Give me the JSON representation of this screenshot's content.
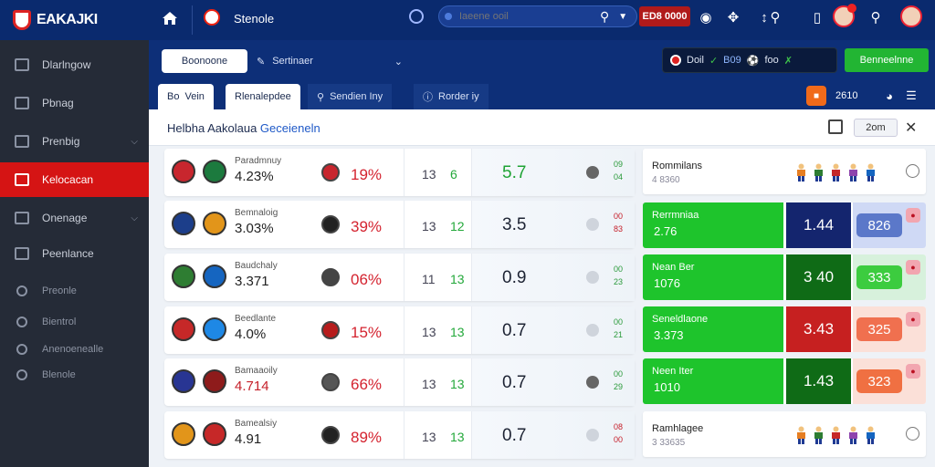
{
  "topbar": {
    "logo_text": "EAKAJKI",
    "title": "Stenole",
    "search_placeholder": "Iaeene ooil",
    "live_label": "ED8 0000"
  },
  "sidebar": {
    "items": [
      {
        "label": "Dlarlngow",
        "icon": "shield-icon",
        "chevron": false,
        "active": false
      },
      {
        "label": "Pbnag",
        "icon": "phone-icon",
        "chevron": false,
        "active": false
      },
      {
        "label": "Prenbig",
        "icon": "card-icon",
        "chevron": true,
        "active": false
      },
      {
        "label": "Kelocacan",
        "icon": "home-icon",
        "active": true,
        "chevron": false
      },
      {
        "label": "Onenage",
        "icon": "wallet-icon",
        "chevron": true,
        "active": false
      },
      {
        "label": "Peenlance",
        "icon": "chart-icon",
        "chevron": false,
        "active": false
      }
    ],
    "small_items": [
      {
        "label": "Preonle",
        "icon": "users-icon"
      },
      {
        "label": "Bientrol",
        "icon": "settings-icon"
      },
      {
        "label": "Anenoenealle",
        "icon": "globe-icon"
      },
      {
        "label": "Blenole",
        "icon": "info-icon"
      }
    ]
  },
  "subbar": {
    "select1": "Boonoone",
    "select2": "Sertinaer",
    "score_widget": {
      "a": "Doil",
      "b": "B09",
      "c": "foo"
    },
    "green_button": "Benneelnne"
  },
  "tabs": [
    {
      "label": "Vein",
      "prefix": "Bo"
    },
    {
      "label": "Rlenalepdee"
    },
    {
      "label": "Sendien Iny"
    },
    {
      "label": "Rorder iy"
    }
  ],
  "tabbar_right": {
    "count": "2610"
  },
  "main": {
    "title_plain": "Helbha Aakolaua ",
    "title_accent": "Geceieneln",
    "zoom_label": "2om"
  },
  "matches": [
    {
      "label": "Paradmnuy",
      "pct": "4.23%",
      "away_pct": "19%",
      "n1": "13",
      "n2": "6",
      "odds": "5.7",
      "mini_top": "09",
      "mini_bot": "04",
      "home_color": "#c8262e",
      "home2_color": "#1c7a3e",
      "away_color": "#c8262e",
      "odds_green": true,
      "dot_light": false
    },
    {
      "label": "Bemnaloig",
      "pct": "3.03%",
      "away_pct": "39%",
      "n1": "13",
      "n2": "12",
      "odds": "3.5",
      "mini_top": "00",
      "mini_bot": "83",
      "home_color": "#1c3e8a",
      "home2_color": "#e2951a",
      "away_color": "#222222",
      "odds_green": false,
      "dot_light": true
    },
    {
      "label": "Baudchaly",
      "pct": "3.371",
      "away_pct": "06%",
      "n1": "11",
      "n2": "13",
      "odds": "0.9",
      "mini_top": "00",
      "mini_bot": "23",
      "home_color": "#2e7d32",
      "home2_color": "#1565c0",
      "away_color": "#444444",
      "odds_green": false,
      "dot_light": true
    },
    {
      "label": "Beedlante",
      "pct": "4.0%",
      "away_pct": "15%",
      "n1": "13",
      "n2": "13",
      "odds": "0.7",
      "mini_top": "00",
      "mini_bot": "21",
      "home_color": "#c62828",
      "home2_color": "#1e88e5",
      "away_color": "#b71c1c",
      "odds_green": false,
      "dot_light": true
    },
    {
      "label": "Bamaaoily",
      "pct": "4.714",
      "away_pct": "66%",
      "n1": "13",
      "n2": "13",
      "odds": "0.7",
      "mini_top": "00",
      "mini_bot": "29",
      "home_color": "#283593",
      "home2_color": "#8e1b1b",
      "away_color": "#555555",
      "odds_green": false,
      "dot_light": false,
      "pct_red": true
    },
    {
      "label": "Bamealsiy",
      "pct": "4.91",
      "away_pct": "89%",
      "n1": "13",
      "n2": "13",
      "odds": "0.7",
      "mini_top": "08",
      "mini_bot": "00",
      "home_color": "#e2951a",
      "home2_color": "#c62828",
      "away_color": "#222222",
      "odds_green": false,
      "dot_light": true
    }
  ],
  "right_cards": [
    {
      "type": "white",
      "title": "Rommilans",
      "sub": "4 8360"
    },
    {
      "type": "green",
      "title": "Rerrmniaa",
      "value": "2.76",
      "odd": "1.44",
      "odd_color": "#14256e",
      "side_val": "826",
      "side_color": "#5b78c9",
      "side_bg": "#cfd9f5"
    },
    {
      "type": "green",
      "title": "Nean Ber",
      "value": "1076",
      "odd": "3 40",
      "odd_color": "#0f6b16",
      "side_val": "333",
      "side_color": "#3ccc3f",
      "side_bg": "#d7f1dc"
    },
    {
      "type": "green",
      "title": "Seneldlaone",
      "value": "3.373",
      "odd": "3.43",
      "odd_color": "#c62020",
      "side_val": "325",
      "side_color": "#f0704f",
      "side_bg": "#fbe0d8"
    },
    {
      "type": "green",
      "title": "Neen Iter",
      "value": "1010",
      "odd": "1.43",
      "odd_color": "#0f6b16",
      "side_val": "323",
      "side_color": "#f07042",
      "side_bg": "#fbe0d8"
    },
    {
      "type": "white",
      "title": "Ramhlagee",
      "sub": "3 33635"
    }
  ],
  "colors": {
    "topbar": "#0a2a6e",
    "sidebar": "#252b37",
    "active": "#d51414",
    "green": "#22b533"
  }
}
